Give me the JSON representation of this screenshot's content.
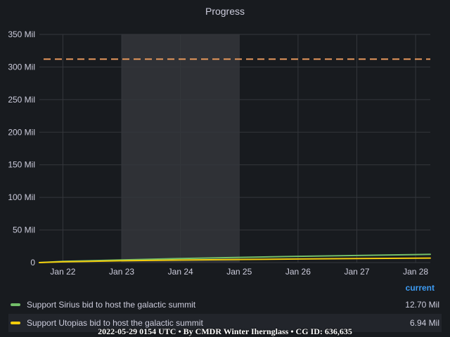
{
  "panel": {
    "title": "Progress"
  },
  "colors": {
    "background": "#181b1f",
    "grid": "#34373c",
    "highlight_region": "#2f3136",
    "threshold": "#e5975b",
    "series_sirius": "#73bf69",
    "series_utopias": "#f2cc0c",
    "legend_header": "#3d9bf2"
  },
  "chart_data": {
    "type": "line",
    "title": "Progress",
    "x_ticks": [
      "Jan 22",
      "Jan 23",
      "Jan 24",
      "Jan 25",
      "Jan 26",
      "Jan 27",
      "Jan 28"
    ],
    "y_ticks": [
      "0",
      "50 Mil",
      "100 Mil",
      "150 Mil",
      "200 Mil",
      "250 Mil",
      "300 Mil",
      "350 Mil"
    ],
    "ylim": [
      0,
      350000000
    ],
    "x_range_days": [
      "Jan 21.6",
      "Jan 28.25"
    ],
    "highlight_range": [
      "Jan 23",
      "Jan 25"
    ],
    "threshold_value": 312000000,
    "grid": true,
    "legend_position": "bottom",
    "series": [
      {
        "name": "Support Sirius bid to host the galactic summit",
        "color": "#73bf69",
        "x": [
          "Jan 21.6",
          "Jan 22",
          "Jan 23",
          "Jan 24",
          "Jan 25",
          "Jan 26",
          "Jan 27",
          "Jan 28",
          "Jan 28.25"
        ],
        "values": [
          0,
          1800000,
          4000000,
          6200000,
          8000000,
          9600000,
          10900000,
          12300000,
          12700000
        ]
      },
      {
        "name": "Support Utopias bid to host the galactic summit",
        "color": "#f2cc0c",
        "x": [
          "Jan 21.6",
          "Jan 22",
          "Jan 23",
          "Jan 24",
          "Jan 25",
          "Jan 26",
          "Jan 27",
          "Jan 28",
          "Jan 28.25"
        ],
        "values": [
          0,
          1200000,
          2800000,
          3900000,
          4700000,
          5500000,
          6100000,
          6700000,
          6940000
        ]
      }
    ]
  },
  "legend": {
    "header": "current",
    "items": [
      {
        "name": "Support Sirius bid to host the galactic summit",
        "value": "12.70 Mil",
        "color": "#73bf69"
      },
      {
        "name": "Support Utopias bid to host the galactic summit",
        "value": "6.94 Mil",
        "color": "#f2cc0c"
      }
    ]
  },
  "footer": {
    "text": "2022-05-29 0154 UTC • By CMDR Winter Ihernglass • CG ID: 636,635"
  }
}
